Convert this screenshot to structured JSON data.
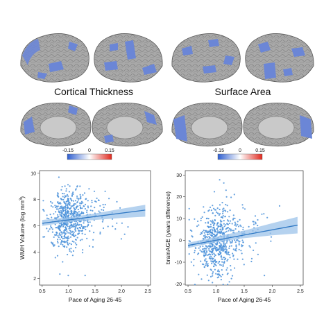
{
  "labels": {
    "cortical_thickness": "Cortical Thickness",
    "surface_area": "Surface Area"
  },
  "colorbar": {
    "min_label": "-0.15",
    "mid_label": "0",
    "max_label": "0.15",
    "low_color": "#2f5fd0",
    "mid_color": "#ffffff",
    "high_color": "#e02a1f"
  },
  "colors": {
    "cortex_gray": "#a9a9a9",
    "cortex_blue": "#6b86d6",
    "point_blue": "#4a90d9",
    "fit_line": "#2f78c4",
    "ci_band": "#9cc3ea"
  },
  "chart_data": [
    {
      "type": "scatter",
      "xlabel": "Pace of Aging 26-45",
      "ylabel": "WMH Volume (log mm",
      "ylabel_sup": "3",
      "ylabel_close": ")",
      "xlim": [
        0.45,
        2.55
      ],
      "ylim": [
        1.5,
        10.2
      ],
      "xticks": [
        "0.5",
        "1.0",
        "1.5",
        "2.0",
        "2.5"
      ],
      "yticks": [
        "2",
        "4",
        "6",
        "8",
        "10"
      ],
      "fit": {
        "x0": 0.5,
        "y0": 6.2,
        "x1": 2.45,
        "y1": 7.2
      },
      "ci": {
        "lower": [
          6.0,
          6.3,
          6.45,
          6.6,
          6.7
        ],
        "upper": [
          6.45,
          6.65,
          6.95,
          7.3,
          7.6
        ],
        "x": [
          0.5,
          1.0,
          1.5,
          2.0,
          2.45
        ]
      },
      "point_summary": {
        "n": 650,
        "x_center": 0.95,
        "x_spread": 0.28,
        "y_center": 6.45,
        "y_spread": 1.05
      }
    },
    {
      "type": "scatter",
      "xlabel": "Pace of Aging 26-45",
      "ylabel": "brainAGE (years difference)",
      "xlim": [
        0.45,
        2.55
      ],
      "ylim": [
        -20.5,
        32
      ],
      "xticks": [
        "0.5",
        "1.0",
        "1.5",
        "2.0",
        "2.5"
      ],
      "yticks": [
        "-20",
        "-10",
        "0",
        "10",
        "20",
        "30"
      ],
      "fit": {
        "x0": 0.5,
        "y0": -2.3,
        "x1": 2.45,
        "y1": 7.0
      },
      "ci": {
        "lower": [
          -3.5,
          -0.8,
          1.0,
          2.3,
          3.2
        ],
        "upper": [
          -1.1,
          1.7,
          4.5,
          7.9,
          10.8
        ],
        "x": [
          0.5,
          1.0,
          1.5,
          2.0,
          2.45
        ]
      },
      "point_summary": {
        "n": 650,
        "x_center": 0.95,
        "x_spread": 0.28,
        "y_center": -1.0,
        "y_spread": 7.5
      }
    }
  ]
}
